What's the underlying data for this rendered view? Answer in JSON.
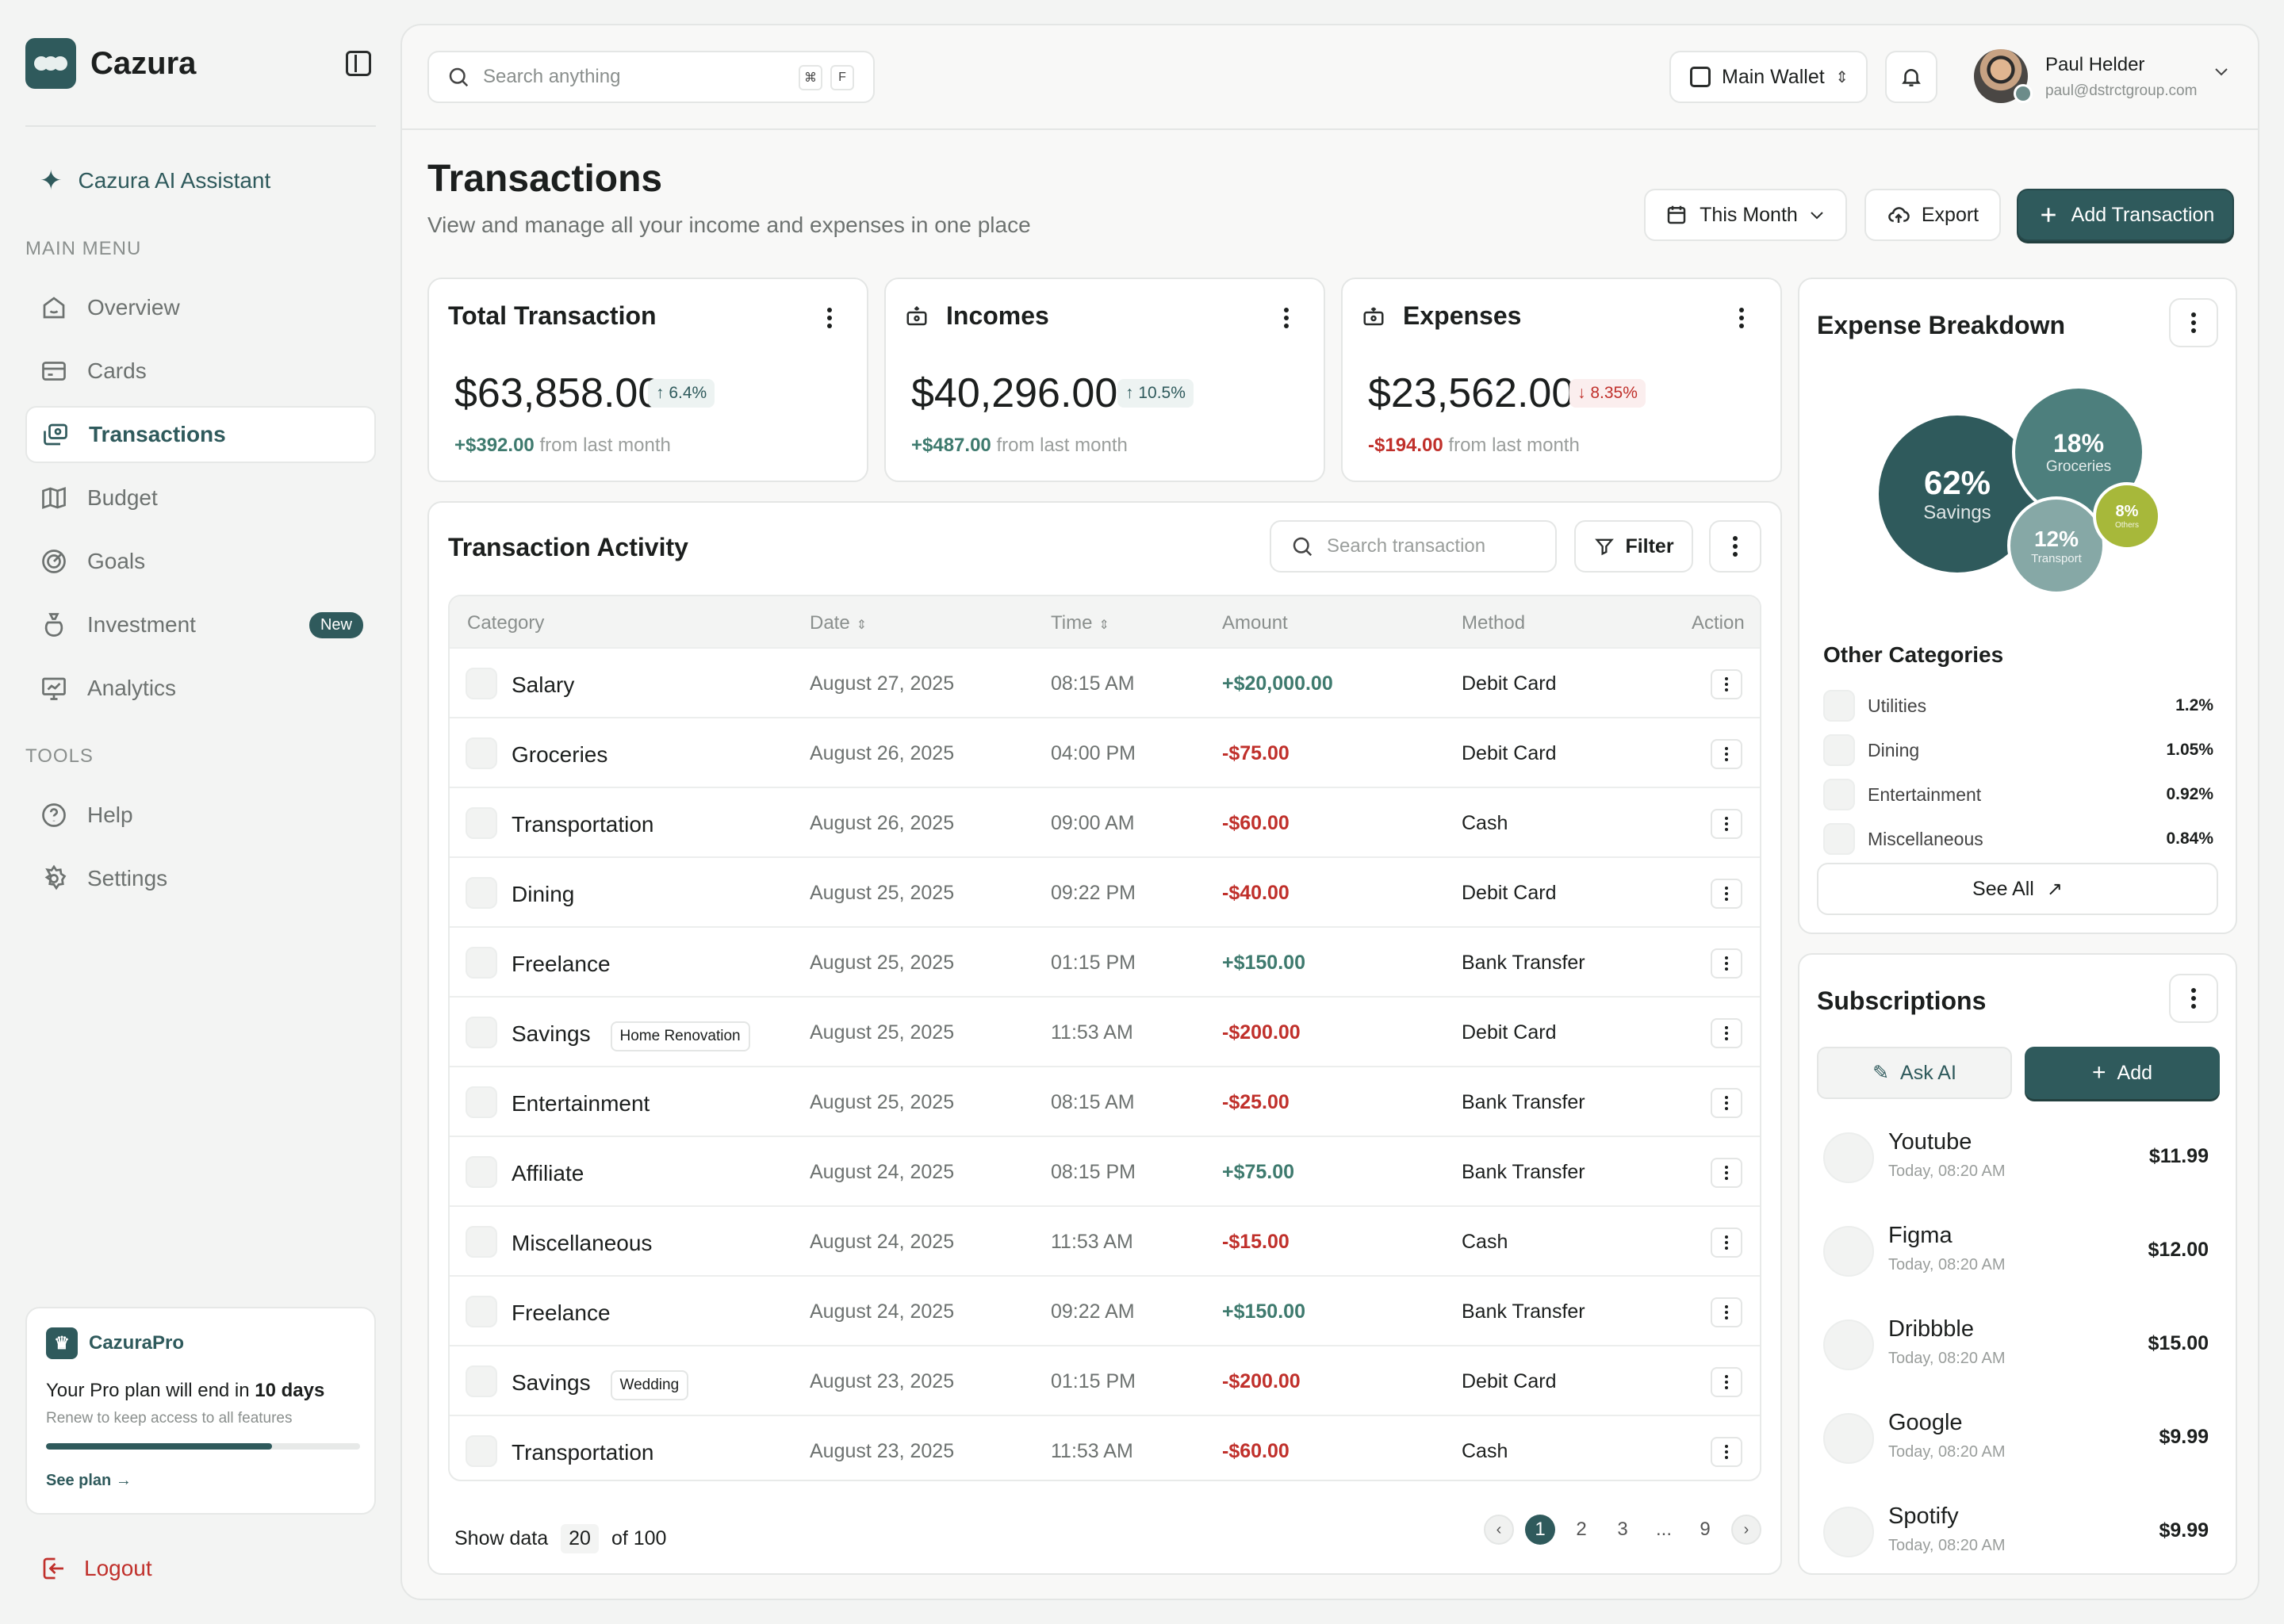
{
  "app": {
    "name": "Cazura"
  },
  "sidebar": {
    "ai_assistant": "Cazura AI Assistant",
    "main_menu_label": "MAIN MENU",
    "items": [
      {
        "label": "Overview",
        "icon": "home-icon"
      },
      {
        "label": "Cards",
        "icon": "card-icon"
      },
      {
        "label": "Transactions",
        "icon": "transactions-icon",
        "active": true
      },
      {
        "label": "Budget",
        "icon": "map-icon"
      },
      {
        "label": "Goals",
        "icon": "target-icon"
      },
      {
        "label": "Investment",
        "icon": "moneybag-icon",
        "badge": "New"
      },
      {
        "label": "Analytics",
        "icon": "chart-icon"
      }
    ],
    "tools_label": "TOOLS",
    "tools": [
      {
        "label": "Help",
        "icon": "help-icon"
      },
      {
        "label": "Settings",
        "icon": "gear-icon"
      }
    ],
    "pro": {
      "name": "CazuraPro",
      "title_prefix": "Your Pro plan will end in",
      "title_days": "10 days",
      "subtitle": "Renew to keep access to all features",
      "progress": 0.72,
      "link": "See plan"
    },
    "logout": "Logout"
  },
  "topbar": {
    "search_placeholder": "Search anything",
    "shortcut_keys": [
      "⌘",
      "F"
    ],
    "wallet": "Main Wallet",
    "user": {
      "name": "Paul Helder",
      "email": "paul@dstrctgroup.com"
    }
  },
  "page": {
    "title": "Transactions",
    "subtitle": "View and manage all your income and expenses in one place",
    "period": "This Month",
    "export": "Export",
    "add": "Add Transaction"
  },
  "stats": [
    {
      "title": "Total Transaction",
      "value": "$63,858.00",
      "pct": "6.4%",
      "dir": "up",
      "delta": "+$392.00",
      "foot": "from last month"
    },
    {
      "title": "Incomes",
      "value": "$40,296.00",
      "pct": "10.5%",
      "dir": "up",
      "delta": "+$487.00",
      "foot": "from last month"
    },
    {
      "title": "Expenses",
      "value": "$23,562.00",
      "pct": "8.35%",
      "dir": "down",
      "delta": "-$194.00",
      "foot": "from last month"
    }
  ],
  "activity": {
    "title": "Transaction Activity",
    "search_placeholder": "Search transaction",
    "filter": "Filter",
    "columns": [
      "Category",
      "Date",
      "Time",
      "Amount",
      "Method",
      "Action"
    ],
    "rows": [
      {
        "category": "Salary",
        "tag": "",
        "date": "August 27, 2025",
        "time": "08:15 AM",
        "amount": "+$20,000.00",
        "method": "Debit Card"
      },
      {
        "category": "Groceries",
        "tag": "",
        "date": "August 26, 2025",
        "time": "04:00 PM",
        "amount": "-$75.00",
        "method": "Debit Card"
      },
      {
        "category": "Transportation",
        "tag": "",
        "date": "August 26, 2025",
        "time": "09:00 AM",
        "amount": "-$60.00",
        "method": "Cash"
      },
      {
        "category": "Dining",
        "tag": "",
        "date": "August 25, 2025",
        "time": "09:22 PM",
        "amount": "-$40.00",
        "method": "Debit Card"
      },
      {
        "category": "Freelance",
        "tag": "",
        "date": "August 25, 2025",
        "time": "01:15 PM",
        "amount": "+$150.00",
        "method": "Bank Transfer"
      },
      {
        "category": "Savings",
        "tag": "Home Renovation",
        "date": "August 25, 2025",
        "time": "11:53 AM",
        "amount": "-$200.00",
        "method": "Debit Card"
      },
      {
        "category": "Entertainment",
        "tag": "",
        "date": "August 25, 2025",
        "time": "08:15 AM",
        "amount": "-$25.00",
        "method": "Bank Transfer"
      },
      {
        "category": "Affiliate",
        "tag": "",
        "date": "August 24, 2025",
        "time": "08:15 PM",
        "amount": "+$75.00",
        "method": "Bank Transfer"
      },
      {
        "category": "Miscellaneous",
        "tag": "",
        "date": "August 24, 2025",
        "time": "11:53 AM",
        "amount": "-$15.00",
        "method": "Cash"
      },
      {
        "category": "Freelance",
        "tag": "",
        "date": "August 24, 2025",
        "time": "09:22 AM",
        "amount": "+$150.00",
        "method": "Bank Transfer"
      },
      {
        "category": "Savings",
        "tag": "Wedding",
        "date": "August 23, 2025",
        "time": "01:15 PM",
        "amount": "-$200.00",
        "method": "Debit Card"
      },
      {
        "category": "Transportation",
        "tag": "",
        "date": "August 23, 2025",
        "time": "11:53 AM",
        "amount": "-$60.00",
        "method": "Cash"
      }
    ],
    "show_label": "Show data",
    "page_size": "20",
    "total": "of 100",
    "pages": [
      "1",
      "2",
      "3",
      "...",
      "9"
    ],
    "current_page": "1"
  },
  "breakdown": {
    "title": "Expense Breakdown",
    "bubbles": [
      {
        "pct": "62%",
        "label": "Savings",
        "color": "#2f5a5c"
      },
      {
        "pct": "18%",
        "label": "Groceries",
        "color": "#4d7f7d"
      },
      {
        "pct": "12%",
        "label": "Transport",
        "color": "#86a8a6"
      },
      {
        "pct": "8%",
        "label": "Others",
        "color": "#a7b83a"
      }
    ],
    "other_title": "Other Categories",
    "others": [
      {
        "label": "Utilities",
        "value": "1.2%"
      },
      {
        "label": "Dining",
        "value": "1.05%"
      },
      {
        "label": "Entertainment",
        "value": "0.92%"
      },
      {
        "label": "Miscellaneous",
        "value": "0.84%"
      }
    ],
    "see_all": "See All"
  },
  "subscriptions": {
    "title": "Subscriptions",
    "ask_ai": "Ask AI",
    "add": "Add",
    "items": [
      {
        "name": "Youtube",
        "time": "Today, 08:20 AM",
        "price": "$11.99"
      },
      {
        "name": "Figma",
        "time": "Today, 08:20 AM",
        "price": "$12.00"
      },
      {
        "name": "Dribbble",
        "time": "Today, 08:20 AM",
        "price": "$15.00"
      },
      {
        "name": "Google",
        "time": "Today, 08:20 AM",
        "price": "$9.99"
      },
      {
        "name": "Spotify",
        "time": "Today, 08:20 AM",
        "price": "$9.99"
      }
    ]
  },
  "colors": {
    "accent": "#2f5a5c",
    "positive": "#3e7a6e",
    "negative": "#c0302b",
    "lime": "#a7b83a"
  }
}
